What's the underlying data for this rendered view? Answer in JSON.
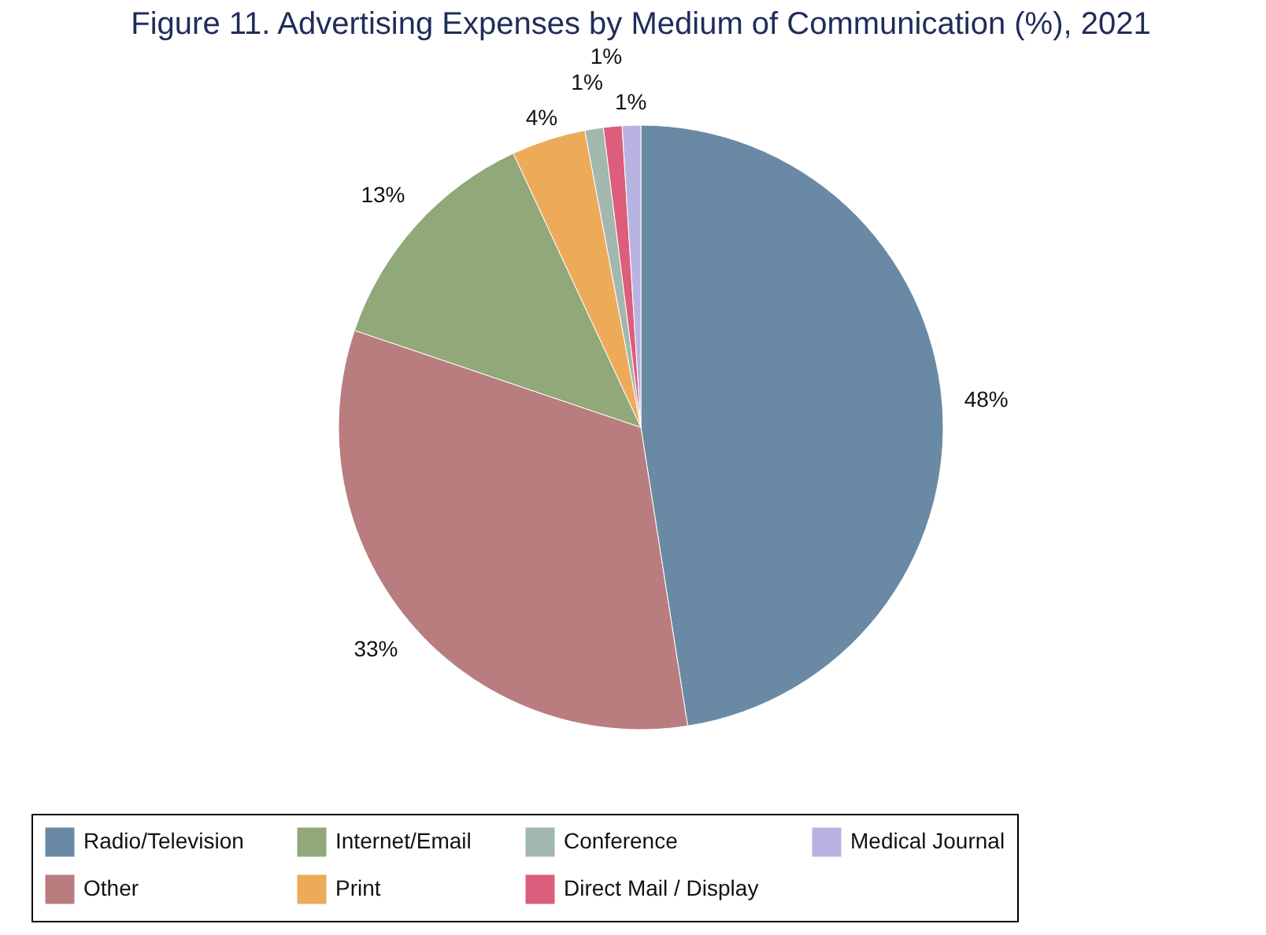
{
  "chart_data": {
    "type": "pie",
    "title": "Figure 11. Advertising Expenses by Medium of Communication (%), 2021",
    "categories": [
      "Radio/Television",
      "Other",
      "Internet/Email",
      "Print",
      "Conference",
      "Direct Mail / Display",
      "Medical Journal"
    ],
    "values": [
      48,
      33,
      13,
      4,
      1,
      1,
      1
    ],
    "value_labels": [
      "48%",
      "33%",
      "13%",
      "4%",
      "1%",
      "1%",
      "1%"
    ],
    "colors": [
      "#6a89a4",
      "#b97d7f",
      "#91a878",
      "#edab5a",
      "#a2b7ae",
      "#dc5e7c",
      "#b8b3e0"
    ],
    "legend": "bottom"
  }
}
